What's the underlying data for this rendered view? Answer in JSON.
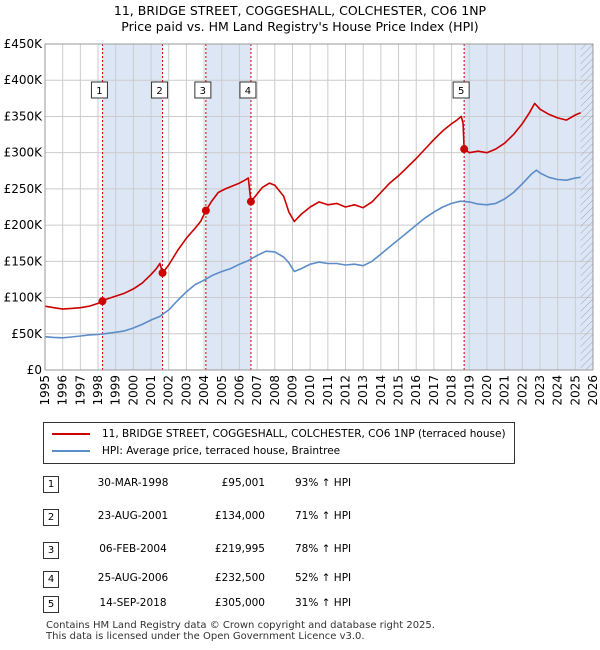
{
  "title_line1": "11, BRIDGE STREET, COGGESHALL, COLCHESTER, CO6 1NP",
  "title_line2": "Price paid vs. HM Land Registry's House Price Index (HPI)",
  "colors": {
    "red": "#cc0000",
    "blue": "#5b8dc9",
    "shade": "#dde6f5",
    "grid": "#cccccc"
  },
  "chart_data": {
    "type": "line",
    "xlim": [
      1995,
      2026
    ],
    "ylim": [
      0,
      450000
    ],
    "x_ticks": [
      1995,
      1996,
      1997,
      1998,
      1999,
      2000,
      2001,
      2002,
      2003,
      2004,
      2005,
      2006,
      2007,
      2008,
      2009,
      2010,
      2011,
      2012,
      2013,
      2014,
      2015,
      2016,
      2017,
      2018,
      2019,
      2020,
      2021,
      2022,
      2023,
      2024,
      2025,
      2026
    ],
    "y_ticks": [
      {
        "value": 0,
        "label": "£0"
      },
      {
        "value": 50000,
        "label": "£50K"
      },
      {
        "value": 100000,
        "label": "£100K"
      },
      {
        "value": 150000,
        "label": "£150K"
      },
      {
        "value": 200000,
        "label": "£200K"
      },
      {
        "value": 250000,
        "label": "£250K"
      },
      {
        "value": 300000,
        "label": "£300K"
      },
      {
        "value": 350000,
        "label": "£350K"
      },
      {
        "value": 400000,
        "label": "£400K"
      },
      {
        "value": 450000,
        "label": "£450K"
      }
    ],
    "series": [
      {
        "name": "11, BRIDGE STREET, COGGESHALL, COLCHESTER, CO6 1NP (terraced house)",
        "color": "#cc0000",
        "points": [
          [
            1995.0,
            88000
          ],
          [
            1995.5,
            86000
          ],
          [
            1996.0,
            84000
          ],
          [
            1996.5,
            85000
          ],
          [
            1997.0,
            86000
          ],
          [
            1997.5,
            88000
          ],
          [
            1998.0,
            92000
          ],
          [
            1998.25,
            95001
          ],
          [
            1998.5,
            98000
          ],
          [
            1999.0,
            102000
          ],
          [
            1999.5,
            106000
          ],
          [
            2000.0,
            112000
          ],
          [
            2000.5,
            120000
          ],
          [
            2001.0,
            132000
          ],
          [
            2001.3,
            140000
          ],
          [
            2001.5,
            147000
          ],
          [
            2001.65,
            134000
          ],
          [
            2002.0,
            145000
          ],
          [
            2002.5,
            165000
          ],
          [
            2003.0,
            182000
          ],
          [
            2003.5,
            196000
          ],
          [
            2003.8,
            205000
          ],
          [
            2004.1,
            219995
          ],
          [
            2004.4,
            232000
          ],
          [
            2004.8,
            245000
          ],
          [
            2005.2,
            250000
          ],
          [
            2005.6,
            254000
          ],
          [
            2006.0,
            258000
          ],
          [
            2006.3,
            262000
          ],
          [
            2006.5,
            265000
          ],
          [
            2006.65,
            232500
          ],
          [
            2006.9,
            240000
          ],
          [
            2007.3,
            252000
          ],
          [
            2007.7,
            258000
          ],
          [
            2008.0,
            255000
          ],
          [
            2008.5,
            240000
          ],
          [
            2008.8,
            218000
          ],
          [
            2009.1,
            205000
          ],
          [
            2009.5,
            215000
          ],
          [
            2010.0,
            225000
          ],
          [
            2010.5,
            232000
          ],
          [
            2011.0,
            228000
          ],
          [
            2011.5,
            230000
          ],
          [
            2012.0,
            225000
          ],
          [
            2012.5,
            228000
          ],
          [
            2013.0,
            224000
          ],
          [
            2013.5,
            232000
          ],
          [
            2014.0,
            245000
          ],
          [
            2014.5,
            258000
          ],
          [
            2015.0,
            268000
          ],
          [
            2015.5,
            280000
          ],
          [
            2016.0,
            292000
          ],
          [
            2016.5,
            305000
          ],
          [
            2017.0,
            318000
          ],
          [
            2017.5,
            330000
          ],
          [
            2018.0,
            340000
          ],
          [
            2018.3,
            345000
          ],
          [
            2018.55,
            350000
          ],
          [
            2018.65,
            340000
          ],
          [
            2018.71,
            305000
          ],
          [
            2019.0,
            300000
          ],
          [
            2019.5,
            302000
          ],
          [
            2020.0,
            300000
          ],
          [
            2020.5,
            305000
          ],
          [
            2021.0,
            313000
          ],
          [
            2021.5,
            325000
          ],
          [
            2022.0,
            340000
          ],
          [
            2022.4,
            355000
          ],
          [
            2022.7,
            368000
          ],
          [
            2023.0,
            360000
          ],
          [
            2023.5,
            353000
          ],
          [
            2024.0,
            348000
          ],
          [
            2024.5,
            345000
          ],
          [
            2025.0,
            352000
          ],
          [
            2025.3,
            355000
          ]
        ]
      },
      {
        "name": "HPI: Average price, terraced house, Braintree",
        "color": "#5b8dc9",
        "points": [
          [
            1995.0,
            46000
          ],
          [
            1995.5,
            45000
          ],
          [
            1996.0,
            44500
          ],
          [
            1996.5,
            45500
          ],
          [
            1997.0,
            47000
          ],
          [
            1997.5,
            48500
          ],
          [
            1998.0,
            49000
          ],
          [
            1998.5,
            50500
          ],
          [
            1999.0,
            52000
          ],
          [
            1999.5,
            54000
          ],
          [
            2000.0,
            58000
          ],
          [
            2000.5,
            63000
          ],
          [
            2001.0,
            69000
          ],
          [
            2001.5,
            74000
          ],
          [
            2002.0,
            83000
          ],
          [
            2002.5,
            96000
          ],
          [
            2003.0,
            108000
          ],
          [
            2003.5,
            118000
          ],
          [
            2004.0,
            124000
          ],
          [
            2004.5,
            131000
          ],
          [
            2005.0,
            136000
          ],
          [
            2005.5,
            140000
          ],
          [
            2006.0,
            146000
          ],
          [
            2006.5,
            151000
          ],
          [
            2007.0,
            158000
          ],
          [
            2007.5,
            164000
          ],
          [
            2008.0,
            163000
          ],
          [
            2008.5,
            156000
          ],
          [
            2008.8,
            148000
          ],
          [
            2009.1,
            136000
          ],
          [
            2009.5,
            140000
          ],
          [
            2010.0,
            146000
          ],
          [
            2010.5,
            149000
          ],
          [
            2011.0,
            147000
          ],
          [
            2011.5,
            147000
          ],
          [
            2012.0,
            145000
          ],
          [
            2012.5,
            146000
          ],
          [
            2013.0,
            144000
          ],
          [
            2013.5,
            150000
          ],
          [
            2014.0,
            160000
          ],
          [
            2014.5,
            170000
          ],
          [
            2015.0,
            180000
          ],
          [
            2015.5,
            190000
          ],
          [
            2016.0,
            200000
          ],
          [
            2016.5,
            210000
          ],
          [
            2017.0,
            218000
          ],
          [
            2017.5,
            225000
          ],
          [
            2018.0,
            230000
          ],
          [
            2018.5,
            233000
          ],
          [
            2019.0,
            232000
          ],
          [
            2019.5,
            229000
          ],
          [
            2020.0,
            228000
          ],
          [
            2020.5,
            230000
          ],
          [
            2021.0,
            236000
          ],
          [
            2021.5,
            245000
          ],
          [
            2022.0,
            257000
          ],
          [
            2022.5,
            270000
          ],
          [
            2022.8,
            276000
          ],
          [
            2023.0,
            272000
          ],
          [
            2023.5,
            266000
          ],
          [
            2024.0,
            263000
          ],
          [
            2024.5,
            262000
          ],
          [
            2025.0,
            265000
          ],
          [
            2025.3,
            266000
          ]
        ]
      }
    ],
    "sales": [
      {
        "label": "1",
        "x": 1998.25,
        "price": 95001
      },
      {
        "label": "2",
        "x": 2001.65,
        "price": 134000
      },
      {
        "label": "3",
        "x": 2004.1,
        "price": 219995
      },
      {
        "label": "4",
        "x": 2006.65,
        "price": 232500
      },
      {
        "label": "5",
        "x": 2018.71,
        "price": 305000
      }
    ],
    "shaded_periods": [
      [
        1998.25,
        2001.65
      ],
      [
        2004.1,
        2006.65
      ],
      [
        2018.71,
        2026
      ]
    ],
    "data_end_x": 2025.3
  },
  "legend": {
    "property": "11, BRIDGE STREET, COGGESHALL, COLCHESTER, CO6 1NP (terraced house)",
    "hpi": "HPI: Average price, terraced house, Braintree"
  },
  "sales_table": [
    {
      "num": "1",
      "date": "30-MAR-1998",
      "price": "£95,001",
      "hpi": "93% ↑ HPI"
    },
    {
      "num": "2",
      "date": "23-AUG-2001",
      "price": "£134,000",
      "hpi": "71% ↑ HPI"
    },
    {
      "num": "3",
      "date": "06-FEB-2004",
      "price": "£219,995",
      "hpi": "78% ↑ HPI"
    },
    {
      "num": "4",
      "date": "25-AUG-2006",
      "price": "£232,500",
      "hpi": "52% ↑ HPI"
    },
    {
      "num": "5",
      "date": "14-SEP-2018",
      "price": "£305,000",
      "hpi": "31% ↑ HPI"
    }
  ],
  "footer_line1": "Contains HM Land Registry data © Crown copyright and database right 2025.",
  "footer_line2": "This data is licensed under the Open Government Licence v3.0."
}
